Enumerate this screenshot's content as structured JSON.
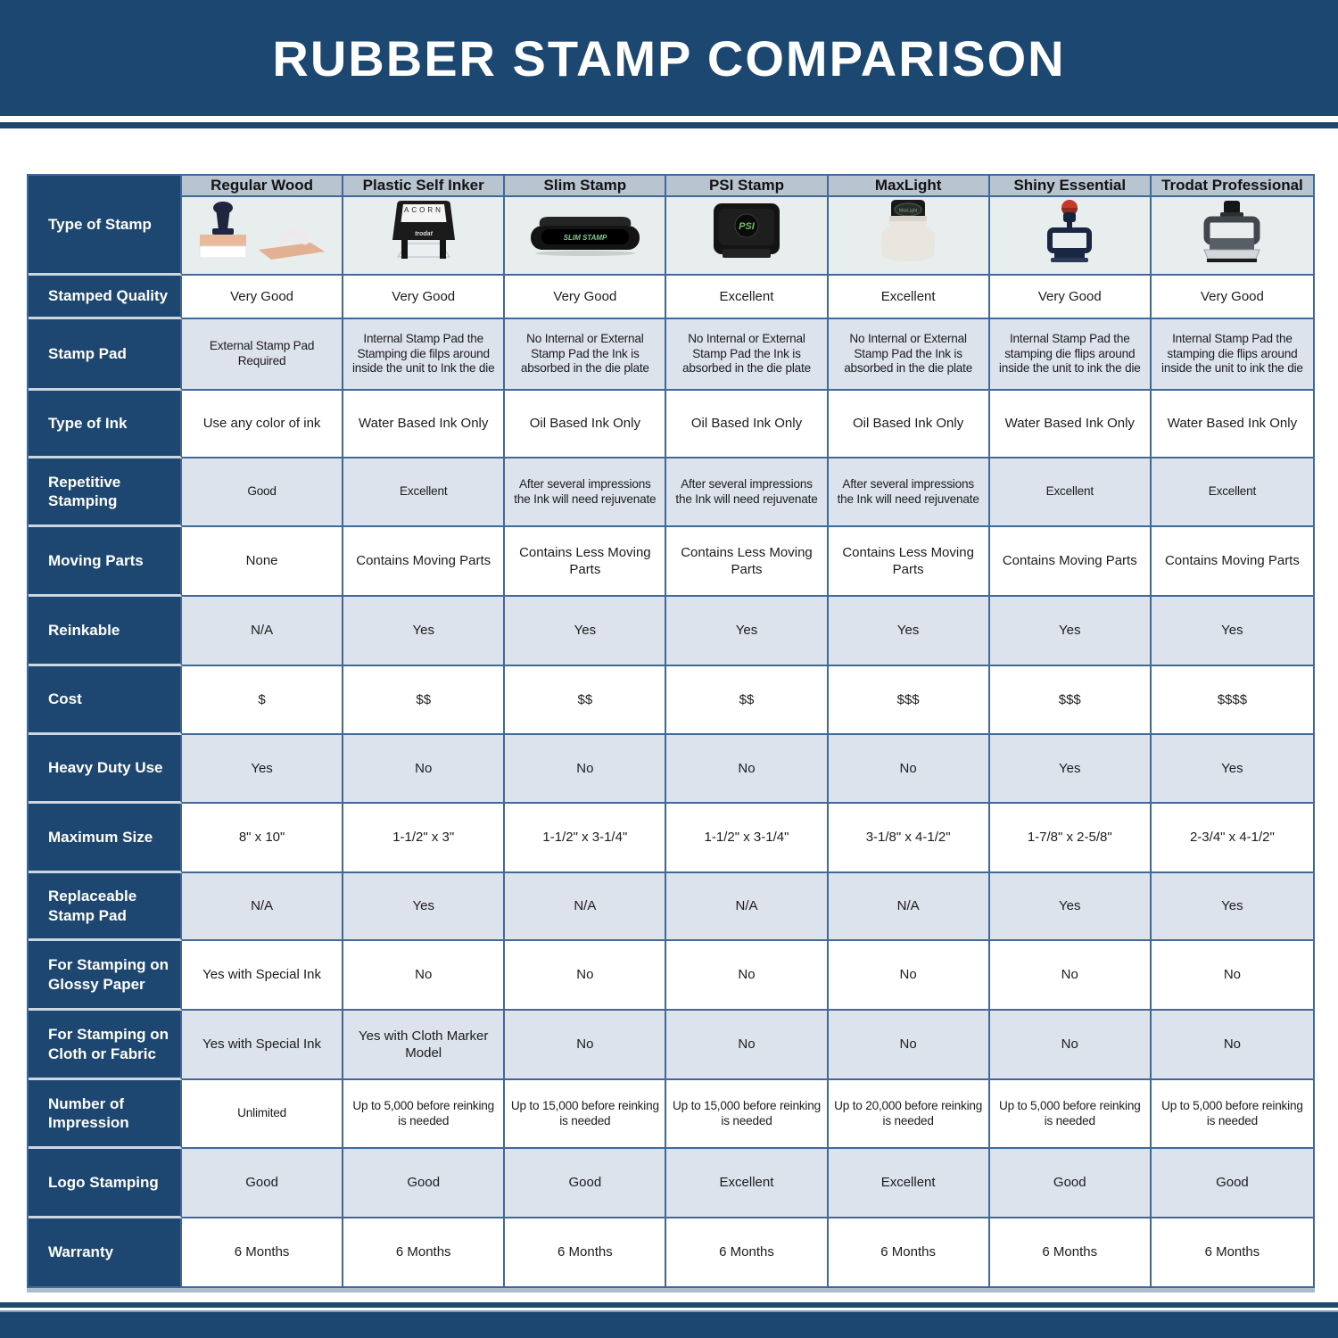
{
  "banner": {
    "title": "RUBBER STAMP COMPARISON"
  },
  "colors": {
    "banner_navy": "#1c4770",
    "label_navy": "#1d4771",
    "column_header_bg": "#b9c4d1",
    "alt_row_bg": "#dde3ed",
    "image_row_bg": "#e8edee",
    "grid_line": "#40699a"
  },
  "table": {
    "type_of_stamp_label": "Type of Stamp",
    "columns": [
      {
        "label": "Regular Wood",
        "image": "regular-wood-stamp"
      },
      {
        "label": "Plastic Self Inker",
        "image": "plastic-self-inker-stamp"
      },
      {
        "label": "Slim Stamp",
        "image": "slim-stamp"
      },
      {
        "label": "PSI Stamp",
        "image": "psi-stamp"
      },
      {
        "label": "MaxLight",
        "image": "maxlight-stamp"
      },
      {
        "label": "Shiny Essential",
        "image": "shiny-essential-stamp"
      },
      {
        "label": "Trodat Professional",
        "image": "trodat-professional-stamp"
      }
    ],
    "rows": [
      {
        "label": "Stamped Quality",
        "values": [
          "Very Good",
          "Very Good",
          "Very Good",
          "Excellent",
          "Excellent",
          "Very Good",
          "Very Good"
        ]
      },
      {
        "label": "Stamp Pad",
        "values": [
          "External Stamp Pad Required",
          "Internal Stamp Pad the Stamping die filps around inside the unit to Ink the die",
          "No Internal or External Stamp Pad the Ink is absorbed in the die plate",
          "No Internal or External Stamp Pad the Ink is absorbed in the die plate",
          "No Internal or External Stamp Pad the Ink is absorbed in the die plate",
          "Internal Stamp Pad the stamping die flips around inside the unit to ink the die",
          "Internal Stamp Pad the stamping die flips around inside the unit to ink the die"
        ]
      },
      {
        "label": "Type of Ink",
        "values": [
          "Use any color of ink",
          "Water Based Ink Only",
          "Oil Based Ink Only",
          "Oil Based Ink Only",
          "Oil Based Ink Only",
          "Water Based Ink Only",
          "Water Based Ink Only"
        ]
      },
      {
        "label": "Repetitive Stamping",
        "values": [
          "Good",
          "Excellent",
          "After several impressions the Ink will need rejuvenate",
          "After several impressions the Ink will need rejuvenate",
          "After several impressions the Ink will need rejuvenate",
          "Excellent",
          "Excellent"
        ]
      },
      {
        "label": "Moving Parts",
        "values": [
          "None",
          "Contains Moving Parts",
          "Contains Less Moving Parts",
          "Contains Less Moving Parts",
          "Contains Less Moving Parts",
          "Contains Moving Parts",
          "Contains Moving Parts"
        ]
      },
      {
        "label": "Reinkable",
        "values": [
          "N/A",
          "Yes",
          "Yes",
          "Yes",
          "Yes",
          "Yes",
          "Yes"
        ]
      },
      {
        "label": "Cost",
        "values": [
          "$",
          "$$",
          "$$",
          "$$",
          "$$$",
          "$$$",
          "$$$$"
        ]
      },
      {
        "label": "Heavy Duty Use",
        "values": [
          "Yes",
          "No",
          "No",
          "No",
          "No",
          "Yes",
          "Yes"
        ]
      },
      {
        "label": "Maximum Size",
        "values": [
          "8\" x 10\"",
          "1-1/2\" x 3\"",
          "1-1/2\" x 3-1/4\"",
          "1-1/2\" x 3-1/4\"",
          "3-1/8\" x 4-1/2\"",
          "1-7/8\" x 2-5/8\"",
          "2-3/4\" x 4-1/2\""
        ]
      },
      {
        "label": "Replaceable Stamp Pad",
        "values": [
          "N/A",
          "Yes",
          "N/A",
          "N/A",
          "N/A",
          "Yes",
          "Yes"
        ]
      },
      {
        "label": "For Stamping on Glossy Paper",
        "values": [
          "Yes with Special Ink",
          "No",
          "No",
          "No",
          "No",
          "No",
          "No"
        ]
      },
      {
        "label": "For Stamping on Cloth or Fabric",
        "values": [
          "Yes with Special Ink",
          "Yes with Cloth Marker Model",
          "No",
          "No",
          "No",
          "No",
          "No"
        ]
      },
      {
        "label": "Number of Impression",
        "values": [
          "Unlimited",
          "Up to 5,000 before reinking is needed",
          "Up to 15,000 before reinking is needed",
          "Up to 15,000 before reinking is needed",
          "Up to 20,000 before reinking is needed",
          "Up to 5,000 before reinking is needed",
          "Up to 5,000 before reinking is needed"
        ]
      },
      {
        "label": "Logo Stamping",
        "values": [
          "Good",
          "Good",
          "Good",
          "Excellent",
          "Excellent",
          "Good",
          "Good"
        ]
      },
      {
        "label": "Warranty",
        "values": [
          "6 Months",
          "6 Months",
          "6 Months",
          "6 Months",
          "6 Months",
          "6 Months",
          "6 Months"
        ]
      }
    ]
  }
}
